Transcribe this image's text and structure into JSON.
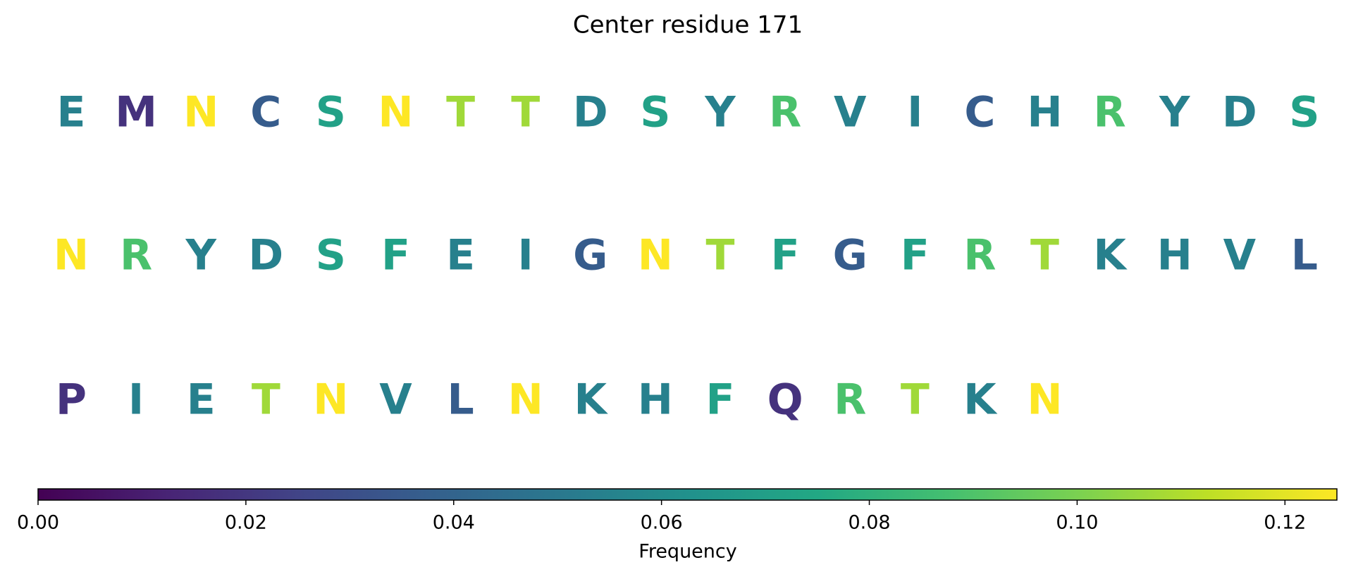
{
  "chart_data": {
    "type": "sequence_logo",
    "title": "Center residue 171",
    "colorbar_label": "Frequency",
    "colormap": "viridis",
    "rows": [
      {
        "letters": [
          "E",
          "M",
          "N",
          "C",
          "S",
          "N",
          "T",
          "T",
          "D",
          "S",
          "Y",
          "R",
          "V",
          "I",
          "C",
          "H",
          "R",
          "Y",
          "D",
          "S"
        ],
        "values": [
          0.054,
          0.018,
          0.125,
          0.036,
          0.071,
          0.125,
          0.107,
          0.107,
          0.054,
          0.071,
          0.054,
          0.089,
          0.054,
          0.054,
          0.036,
          0.054,
          0.089,
          0.054,
          0.054,
          0.071
        ]
      },
      {
        "letters": [
          "N",
          "R",
          "Y",
          "D",
          "S",
          "F",
          "E",
          "I",
          "G",
          "N",
          "T",
          "F",
          "G",
          "F",
          "R",
          "T",
          "K",
          "H",
          "V",
          "L"
        ],
        "values": [
          0.125,
          0.089,
          0.054,
          0.054,
          0.071,
          0.071,
          0.054,
          0.054,
          0.036,
          0.125,
          0.107,
          0.071,
          0.036,
          0.071,
          0.089,
          0.107,
          0.054,
          0.054,
          0.054,
          0.036
        ]
      },
      {
        "letters": [
          "P",
          "I",
          "E",
          "T",
          "N",
          "V",
          "L",
          "N",
          "K",
          "H",
          "F",
          "Q",
          "R",
          "T",
          "K",
          "N"
        ],
        "values": [
          0.018,
          0.054,
          0.054,
          0.107,
          0.125,
          0.054,
          0.036,
          0.125,
          0.054,
          0.054,
          0.071,
          0.018,
          0.089,
          0.107,
          0.054,
          0.125
        ]
      }
    ],
    "xlim": [
      0,
      0.125
    ],
    "xticks": [
      {
        "value": 0,
        "label": "0.00"
      },
      {
        "value": 0.02,
        "label": "0.02"
      },
      {
        "value": 0.04,
        "label": "0.04"
      },
      {
        "value": 0.06,
        "label": "0.06"
      },
      {
        "value": 0.08,
        "label": "0.08"
      },
      {
        "value": 0.1,
        "label": "0.10"
      },
      {
        "value": 0.12,
        "label": "0.12"
      }
    ]
  }
}
